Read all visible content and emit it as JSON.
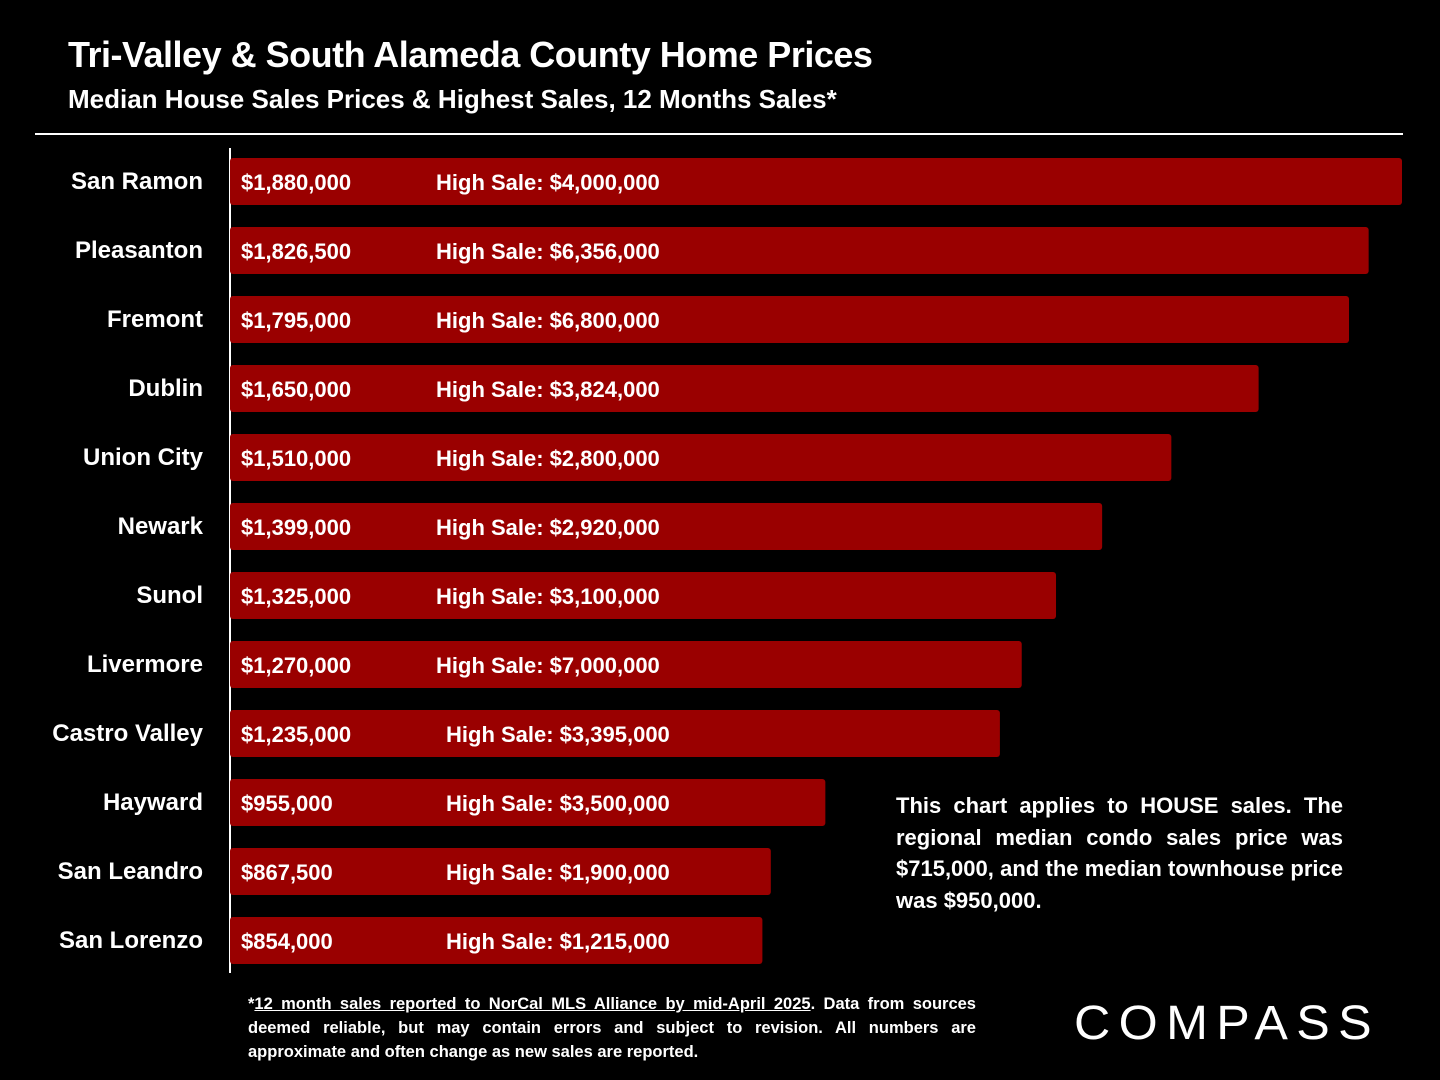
{
  "title": "Tri-Valley & South Alameda County Home Prices",
  "subtitle": "Median House Sales Prices & Highest Sales, 12 Months Sales*",
  "note": "This chart applies to HOUSE sales. The regional median condo sales price was $715,000, and the median townhouse price was $950,000.",
  "footnote": {
    "asterisk": "*",
    "underlined": "12 month sales reported to NorCal MLS Alliance by mid-April 2025",
    "rest": ". Data from sources deemed reliable, but may contain errors and subject to revision. All numbers are approximate and often change as new sales are reported."
  },
  "logo_text": "COMPASS",
  "colors": {
    "background": "#000000",
    "bar": "#9a0000",
    "text": "#ffffff"
  },
  "chart_data": {
    "type": "bar",
    "orientation": "horizontal",
    "categories": [
      "San Ramon",
      "Pleasanton",
      "Fremont",
      "Dublin",
      "Union City",
      "Newark",
      "Sunol",
      "Livermore",
      "Castro Valley",
      "Hayward",
      "San Leandro",
      "San Lorenzo"
    ],
    "values": [
      1880000,
      1826500,
      1795000,
      1650000,
      1510000,
      1399000,
      1325000,
      1270000,
      1235000,
      955000,
      867500,
      854000
    ],
    "value_labels": [
      "$1,880,000",
      "$1,826,500",
      "$1,795,000",
      "$1,650,000",
      "$1,510,000",
      "$1,399,000",
      "$1,325,000",
      "$1,270,000",
      "$1,235,000",
      "$955,000",
      "$867,500",
      "$854,000"
    ],
    "high_sale_prefix": "High Sale:",
    "high_sales": [
      "$4,000,000",
      "$6,356,000",
      "$6,800,000",
      "$3,824,000",
      "$2,800,000",
      "$2,920,000",
      "$3,100,000",
      "$7,000,000",
      "$3,395,000",
      "$3,500,000",
      "$1,900,000",
      "$1,215,000"
    ],
    "xlim": [
      0,
      1880000
    ],
    "grid": false,
    "legend": "none"
  }
}
